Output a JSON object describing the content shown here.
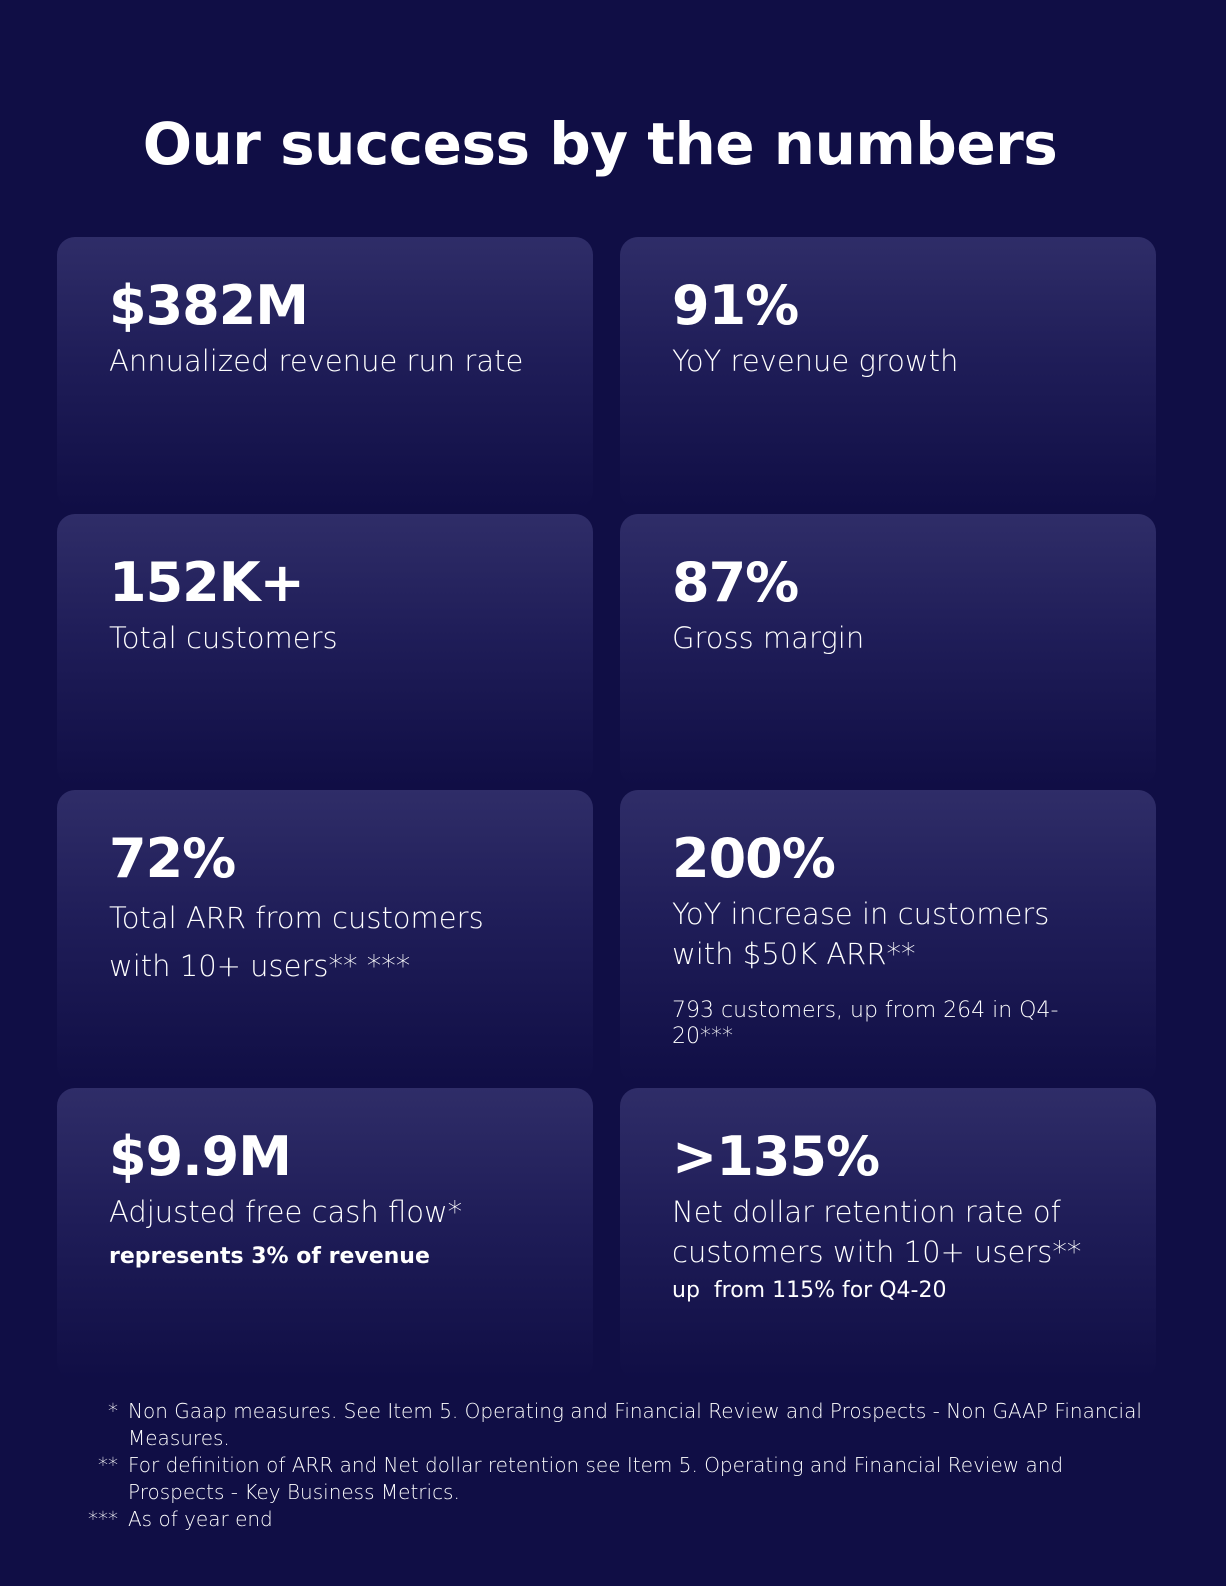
{
  "title": "Our success by the numbers",
  "colors": {
    "background": "#100e45",
    "card_top": "#2f2d68",
    "text": "#ffffff"
  },
  "cards": [
    {
      "value": "$382M",
      "label": "Annualized revenue run rate"
    },
    {
      "value": "91%",
      "label": "YoY revenue growth"
    },
    {
      "value": "152K+",
      "label": "Total customers"
    },
    {
      "value": "87%",
      "label": "Gross margin"
    },
    {
      "value": "72%",
      "label": "Total ARR from customers with 10+ users**  ***"
    },
    {
      "value": "200%",
      "label": "YoY increase in customers with $50K ARR**",
      "sub": "793 customers, up from 264 in Q4-20***"
    },
    {
      "value": "$9.9M",
      "label": "Adjusted free cash flow*",
      "sub": "represents 3% of revenue"
    },
    {
      "value": ">135%",
      "label": "Net dollar retention rate of customers with 10+ users**",
      "sub": "up  from 115% for Q4-20"
    }
  ],
  "footnotes": [
    {
      "mark": "*",
      "text": "Non Gaap measures. See Item 5. Operating and Financial Review and Prospects - Non GAAP Financial Measures."
    },
    {
      "mark": "**",
      "text": "For definition of ARR and Net dollar retention see Item 5. Operating and Financial Review and Prospects - Key Business Metrics."
    },
    {
      "mark": "***",
      "text": "As of year end"
    }
  ]
}
